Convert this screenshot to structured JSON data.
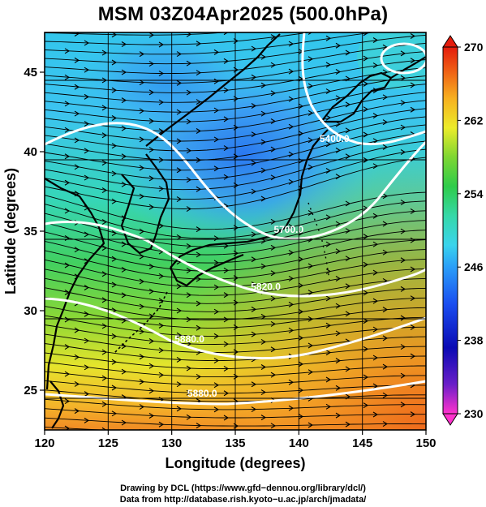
{
  "title": "MSM 03Z04Apr2025 (500.0hPa)",
  "map": {
    "lon_range": [
      120,
      150
    ],
    "lat_range": [
      22.5,
      47.5
    ],
    "lon_ticks": [
      120,
      125,
      130,
      135,
      140,
      145,
      150
    ],
    "lat_ticks": [
      25,
      30,
      35,
      40,
      45
    ],
    "xlabel": "Longitude (degrees)",
    "ylabel": "Latitude  (degrees)",
    "grid": true,
    "field": "temperature (K), shaded",
    "contour_labels": [
      {
        "text": "5400.0",
        "lon": 142.8,
        "lat": 40.6
      },
      {
        "text": "5700.0",
        "lon": 139.2,
        "lat": 34.9
      },
      {
        "text": "5820.0",
        "lon": 137.4,
        "lat": 31.3
      },
      {
        "text": "5880.0",
        "lon": 131.4,
        "lat": 28.0
      },
      {
        "text": "5880.0",
        "lon": 132.4,
        "lat": 24.6
      }
    ]
  },
  "colorbar": {
    "min": 230,
    "max": 270,
    "tick_labels": [
      "270",
      "262",
      "254",
      "246",
      "238",
      "230"
    ],
    "tick_values": [
      270,
      262,
      254,
      246,
      238,
      230
    ],
    "colors": [
      "#ff33cc",
      "#6a1ec8",
      "#0a0ab4",
      "#1a4ef0",
      "#2a9ef8",
      "#3ad4ec",
      "#36d8a8",
      "#2ecc4a",
      "#7ed632",
      "#ecec2a",
      "#f7b020",
      "#ee5a14",
      "#e41c0c"
    ]
  },
  "footer": {
    "line1": "Drawing by DCL (https://www.gfd−dennou.org/library/dcl/)",
    "line2": "Data from http://database.rish.kyoto−u.ac.jp/arch/jmadata/"
  }
}
